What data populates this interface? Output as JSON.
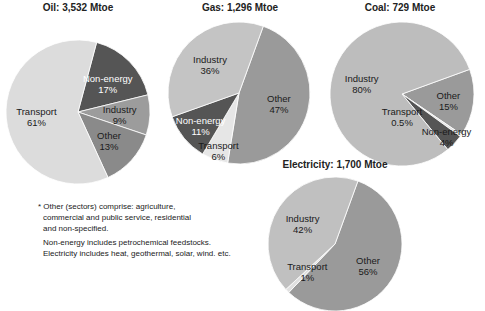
{
  "chart_data": [
    {
      "type": "pie",
      "title": "Oil: 3,532 Mtoe",
      "categories": [
        "Non-energy",
        "Industry",
        "Other",
        "Transport"
      ],
      "values": [
        17,
        9,
        13,
        61
      ],
      "value_labels": [
        "17%",
        "9%",
        "13%",
        "61%"
      ],
      "colors": [
        "#555555",
        "#9c9c9c",
        "#8a8a8a",
        "#dcdcdc"
      ],
      "data_labels": true
    },
    {
      "type": "pie",
      "title": "Gas: 1,296 Mtoe",
      "categories": [
        "Other",
        "Transport",
        "Non-energy",
        "Industry"
      ],
      "values": [
        47,
        6,
        11,
        36
      ],
      "value_labels": [
        "47%",
        "6%",
        "11%",
        "36%"
      ],
      "colors": [
        "#9a9a9a",
        "#e6e6e6",
        "#555555",
        "#c4c4c4"
      ],
      "data_labels": true
    },
    {
      "type": "pie",
      "title": "Coal: 729 Mtoe",
      "categories": [
        "Other",
        "Transport",
        "Non-energy",
        "Industry"
      ],
      "values": [
        15,
        0.5,
        4,
        80
      ],
      "value_labels": [
        "15%",
        "0.5%",
        "4%",
        "80%"
      ],
      "colors": [
        "#9a9a9a",
        "#e0e0e0",
        "#555555",
        "#bdbdbd"
      ],
      "data_labels": true
    },
    {
      "type": "pie",
      "title": "Electricity: 1,700 Mtoe",
      "categories": [
        "Other",
        "Transport",
        "Industry"
      ],
      "values": [
        56,
        1,
        42
      ],
      "value_labels": [
        "56%",
        "1%",
        "42%"
      ],
      "colors": [
        "#9a9a9a",
        "#e0e0e0",
        "#c0c0c0"
      ],
      "data_labels": true
    }
  ],
  "notes": [
    "* Other (sectors) comprise: agriculture,",
    "commercial and public service, residential",
    "and non-specified.",
    "Non-energy includes petrochemical feedstocks.",
    "Electricity includes heat, geothermal, solar, wind. etc."
  ]
}
